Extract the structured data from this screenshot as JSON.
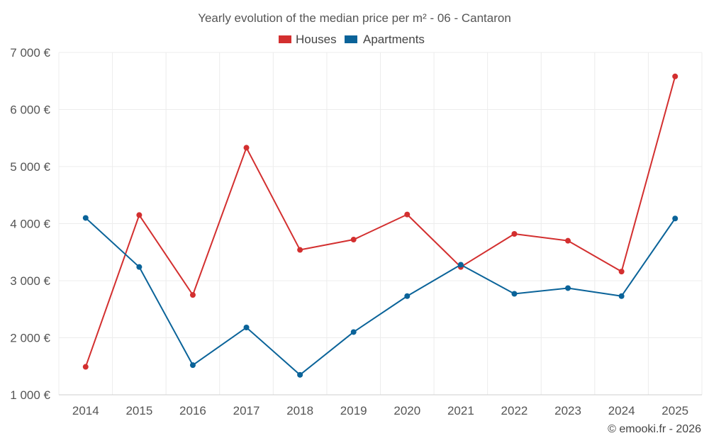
{
  "chart_data": {
    "type": "line",
    "title": "Yearly evolution of the median price per m² - 06 - Cantaron",
    "categories": [
      "2014",
      "2015",
      "2016",
      "2017",
      "2018",
      "2019",
      "2020",
      "2021",
      "2022",
      "2023",
      "2024",
      "2025"
    ],
    "series": [
      {
        "name": "Houses",
        "color": "#d32f2f",
        "values": [
          1490,
          4150,
          2750,
          5330,
          3540,
          3720,
          4160,
          3240,
          3820,
          3700,
          3160,
          6580
        ]
      },
      {
        "name": "Apartments",
        "color": "#0a6399",
        "values": [
          4100,
          3240,
          1520,
          2180,
          1350,
          2100,
          2730,
          3280,
          2770,
          2870,
          2730,
          4090
        ]
      }
    ],
    "ylim": [
      1000,
      7000
    ],
    "yticks": [
      1000,
      2000,
      3000,
      4000,
      5000,
      6000,
      7000
    ],
    "ytick_labels": [
      "1 000 €",
      "2 000 €",
      "3 000 €",
      "4 000 €",
      "5 000 €",
      "6 000 €",
      "7 000 €"
    ],
    "xlabel": "",
    "ylabel": "",
    "grid": true,
    "legend_position": "top-center"
  },
  "credit": "© emooki.fr - 2026"
}
